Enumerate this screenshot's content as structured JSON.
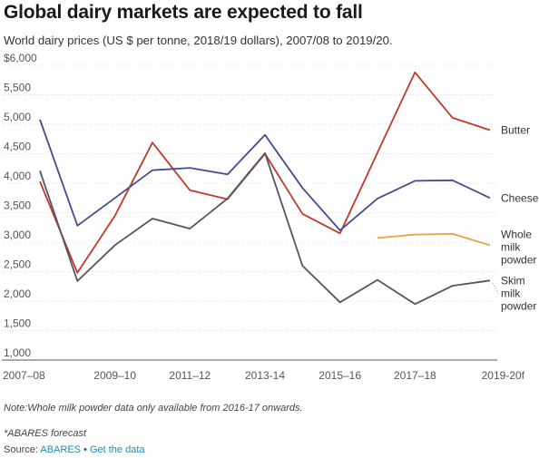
{
  "title": "Global dairy markets are expected to fall",
  "subtitle": "World dairy prices (US $ per tonne, 2018/19 dollars), 2007/08 to 2019/20.",
  "note": "Note:Whole milk powder data only available from 2016-17 onwards.",
  "forecast_note": "*ABARES forecast",
  "source": {
    "prefix": "Source: ",
    "org": "ABARES",
    "separator": " • ",
    "link": "Get the data"
  },
  "chart_data": {
    "type": "line",
    "x": [
      "2007–08",
      "2008–09",
      "2009–10",
      "2010–11",
      "2011–12",
      "2012–13",
      "2013-14",
      "2014–15",
      "2015–16",
      "2016–17",
      "2017–18",
      "2018–19",
      "2019-20f"
    ],
    "x_tick_labels": [
      "2007–08",
      "2009–10",
      "2011–12",
      "2013-14",
      "2015–16",
      "2017–18",
      "2019-20f"
    ],
    "y_tick_labels": [
      "1,000",
      "1,500",
      "2,000",
      "2,500",
      "3,000",
      "3,500",
      "4,000",
      "4,500",
      "5,000",
      "5,500",
      "$6,000"
    ],
    "ylim": [
      1000,
      6000
    ],
    "grid": true,
    "series": [
      {
        "name": "Butter",
        "label_lines": [
          "Butter"
        ],
        "color": "#c0392b",
        "values": [
          4030,
          2480,
          3450,
          4690,
          3880,
          3730,
          4500,
          3480,
          3150,
          4520,
          5880,
          5110,
          4900
        ]
      },
      {
        "name": "Cheese",
        "label_lines": [
          "Cheese"
        ],
        "color": "#464b8f",
        "values": [
          5080,
          3280,
          3750,
          4220,
          4260,
          4150,
          4820,
          3920,
          3200,
          3740,
          4040,
          4050,
          3750
        ]
      },
      {
        "name": "Whole milk powder",
        "label_lines": [
          "Whole",
          "milk",
          "powder"
        ],
        "color": "#e8a33b",
        "values": [
          null,
          null,
          null,
          null,
          null,
          null,
          null,
          null,
          null,
          3070,
          3130,
          3140,
          2950
        ]
      },
      {
        "name": "Skim milk powder",
        "label_lines": [
          "Skim",
          "milk",
          "powder"
        ],
        "color": "#555560",
        "values": [
          4210,
          2340,
          2950,
          3400,
          3230,
          3740,
          4510,
          2600,
          1980,
          2360,
          1950,
          2260,
          2350
        ]
      }
    ]
  }
}
